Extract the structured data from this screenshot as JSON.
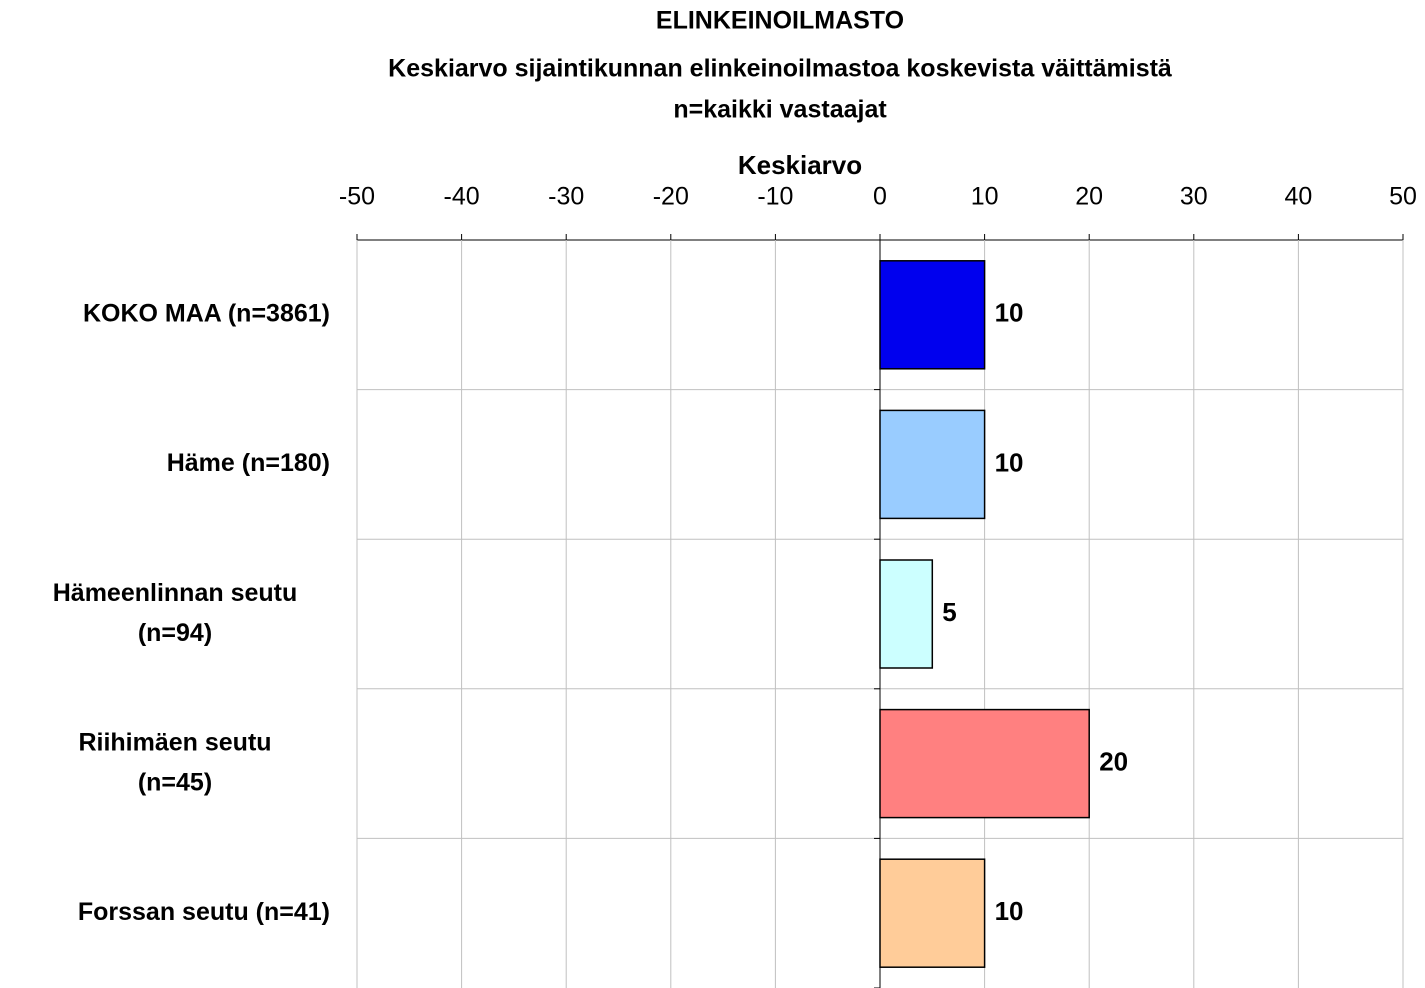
{
  "chart_data": {
    "type": "barh",
    "title": "ELINKEINOILMASTO",
    "subtitle": [
      "Keskiarvo sijaintikunnan elinkeinoilmastoa koskevista väittämistä",
      "n=kaikki vastaajat"
    ],
    "x_label": "Keskiarvo",
    "categories": [
      "KOKO MAA (n=3861)",
      "Häme (n=180)",
      "Hämeenlinnan seutu (n=94)",
      "Riihimäen seutu (n=45)",
      "Forssan seutu (n=41)"
    ],
    "values": [
      10,
      10,
      5,
      20,
      10
    ],
    "colors": [
      "#0000ee",
      "#99ccff",
      "#ccffff",
      "#ff8080",
      "#ffcc99"
    ],
    "xlim": [
      -50,
      50
    ],
    "xticks": [
      -50,
      -40,
      -30,
      -20,
      -10,
      0,
      10,
      20,
      30,
      40,
      50
    ],
    "grid": true
  }
}
